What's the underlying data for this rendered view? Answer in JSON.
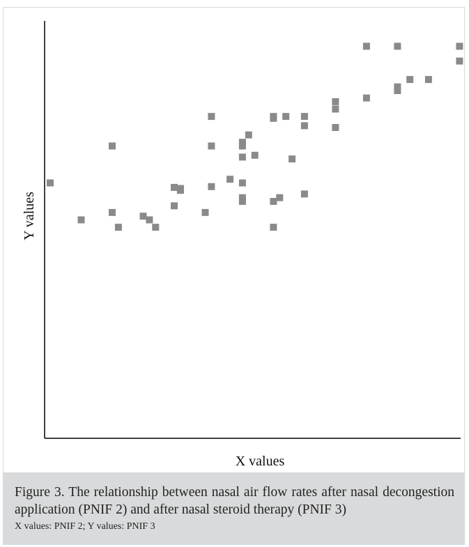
{
  "chart_data": {
    "type": "scatter",
    "xlabel": "X values",
    "ylabel": "Y values",
    "grid": false,
    "marker_color": "#8a8a8a",
    "points": [
      {
        "x": 0,
        "y": 45
      },
      {
        "x": 5,
        "y": 35
      },
      {
        "x": 10,
        "y": 55
      },
      {
        "x": 10,
        "y": 37
      },
      {
        "x": 11,
        "y": 33
      },
      {
        "x": 15,
        "y": 36
      },
      {
        "x": 16,
        "y": 35
      },
      {
        "x": 17,
        "y": 33
      },
      {
        "x": 20,
        "y": 43.8
      },
      {
        "x": 20,
        "y": 38.8
      },
      {
        "x": 21,
        "y": 43.5
      },
      {
        "x": 21,
        "y": 43
      },
      {
        "x": 25,
        "y": 37
      },
      {
        "x": 26,
        "y": 63
      },
      {
        "x": 26,
        "y": 55
      },
      {
        "x": 26,
        "y": 44
      },
      {
        "x": 29,
        "y": 46
      },
      {
        "x": 31,
        "y": 56
      },
      {
        "x": 31,
        "y": 55
      },
      {
        "x": 31,
        "y": 52
      },
      {
        "x": 31,
        "y": 45
      },
      {
        "x": 31,
        "y": 41
      },
      {
        "x": 31,
        "y": 40
      },
      {
        "x": 32,
        "y": 58
      },
      {
        "x": 33,
        "y": 52.5
      },
      {
        "x": 36,
        "y": 63
      },
      {
        "x": 36,
        "y": 62.5
      },
      {
        "x": 36,
        "y": 40
      },
      {
        "x": 36,
        "y": 33
      },
      {
        "x": 37,
        "y": 41
      },
      {
        "x": 38,
        "y": 63
      },
      {
        "x": 39,
        "y": 51.5
      },
      {
        "x": 41,
        "y": 63
      },
      {
        "x": 41,
        "y": 60.5
      },
      {
        "x": 41,
        "y": 42
      },
      {
        "x": 46,
        "y": 67
      },
      {
        "x": 46,
        "y": 65
      },
      {
        "x": 46,
        "y": 60
      },
      {
        "x": 51,
        "y": 68
      },
      {
        "x": 51,
        "y": 82
      },
      {
        "x": 56,
        "y": 82
      },
      {
        "x": 56,
        "y": 71
      },
      {
        "x": 56,
        "y": 70
      },
      {
        "x": 58,
        "y": 73
      },
      {
        "x": 61,
        "y": 73
      },
      {
        "x": 66,
        "y": 82
      },
      {
        "x": 66,
        "y": 78
      }
    ]
  },
  "caption": {
    "main": "Figure 3. The relationship between nasal air flow rates after nasal decongestion application (PNIF 2) and after nasal steroid therapy (PNIF 3)",
    "note": "X values: PNIF 2; Y values: PNIF 3"
  }
}
